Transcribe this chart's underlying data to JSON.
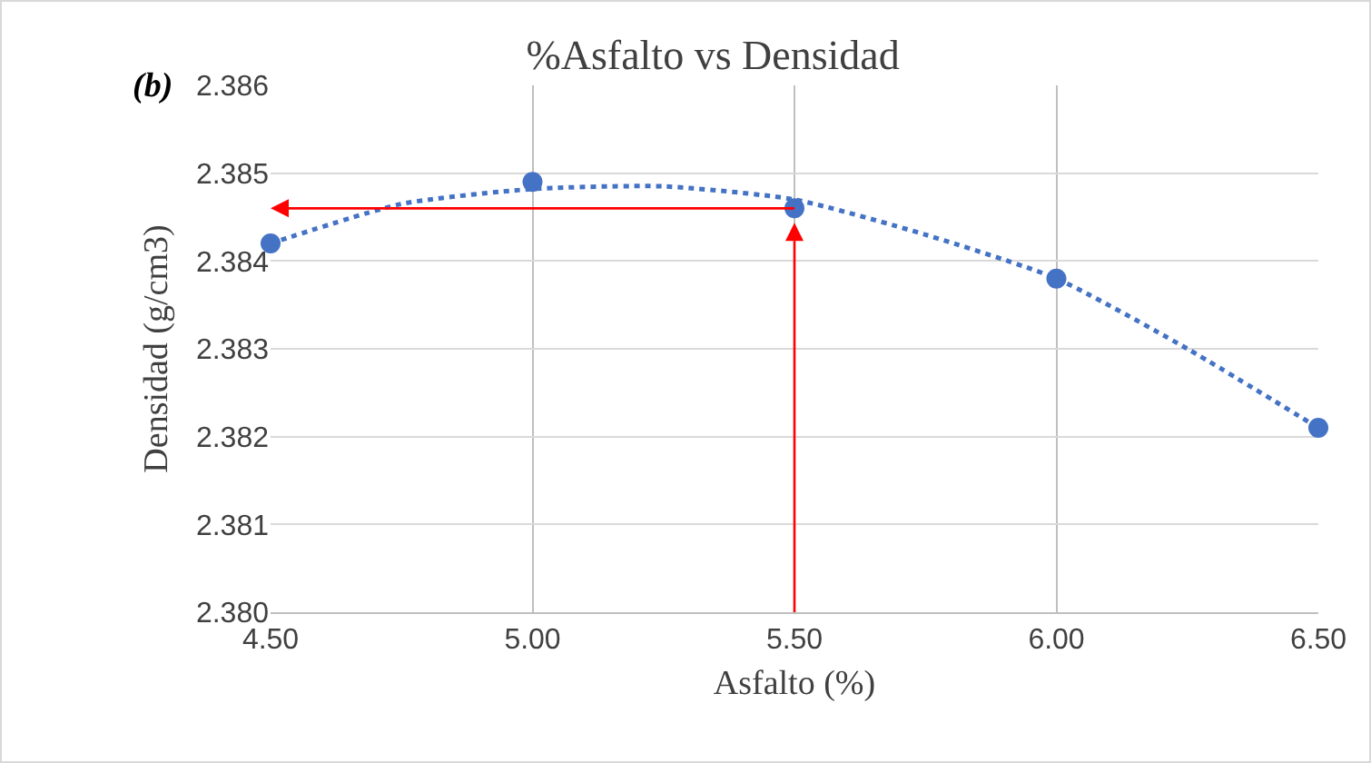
{
  "chart_data": {
    "type": "scatter",
    "title": "%Asfalto vs Densidad",
    "xlabel": "Asfalto (%)",
    "ylabel": "Densidad (g/cm3)",
    "annotations": [
      "(b)"
    ],
    "x": [
      4.5,
      5.0,
      5.5,
      6.0,
      6.5
    ],
    "series": [
      {
        "color": "#4472c4",
        "values": [
          2.3842,
          2.3849,
          2.3846,
          2.3838,
          2.3821
        ],
        "marker": "circle"
      },
      {
        "type": "line",
        "color": "#4472c4",
        "line_style": "dotted",
        "marker": "none",
        "x": [
          4.5,
          4.75,
          5.0,
          5.25,
          5.5,
          5.75,
          6.0,
          6.25,
          6.5
        ],
        "values": [
          2.3842,
          2.38465,
          2.38482,
          2.38485,
          2.3847,
          2.3843,
          2.3838,
          2.383,
          2.3821
        ]
      }
    ],
    "xlim": [
      4.5,
      6.5
    ],
    "xticks": [
      {
        "value": 4.5,
        "label": "4.50"
      },
      {
        "value": 5.0,
        "label": "5.00"
      },
      {
        "value": 5.5,
        "label": "5.50"
      },
      {
        "value": 6.0,
        "label": "6.00"
      },
      {
        "value": 6.5,
        "label": "6.50"
      }
    ],
    "ylim": [
      2.38,
      2.386
    ],
    "yticks": [
      {
        "value": 2.38,
        "label": "2.380"
      },
      {
        "value": 2.381,
        "label": "2.381"
      },
      {
        "value": 2.382,
        "label": "2.382"
      },
      {
        "value": 2.383,
        "label": "2.383"
      },
      {
        "value": 2.384,
        "label": "2.384"
      },
      {
        "value": 2.385,
        "label": "2.385"
      },
      {
        "value": 2.386,
        "label": "2.386"
      }
    ],
    "grid": true
  }
}
